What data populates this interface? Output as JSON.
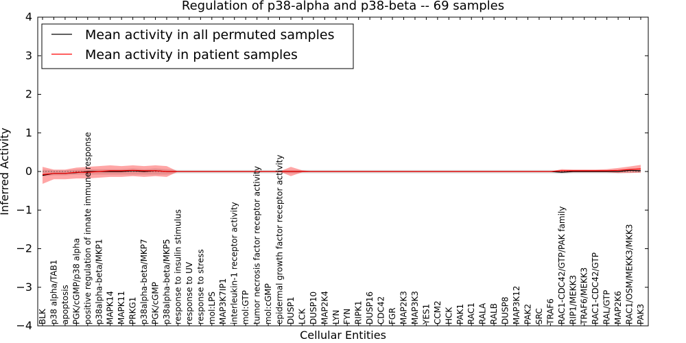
{
  "chart_data": {
    "type": "line",
    "title": "Regulation of p38-alpha and p38-beta -- 69 samples",
    "xlabel": "Cellular Entities",
    "ylabel": "Inferred Activity",
    "ylim": [
      -4,
      4
    ],
    "yticks": [
      -4,
      -3,
      -2,
      -1,
      0,
      1,
      2,
      3,
      4
    ],
    "ytick_labels": [
      "−4",
      "−3",
      "−2",
      "−1",
      "0",
      "1",
      "2",
      "3",
      "4"
    ],
    "legend_position": "top-left",
    "categories": [
      "BLK",
      "p38 alpha/TAB1",
      "apoptosis",
      "PGK/cGMP/p38 alpha",
      "positive regulation of innate immune response",
      "p38alpha-beta/MKP1",
      "MAPK14",
      "MAPK11",
      "PRKG1",
      "p38alpha-beta/MKP7",
      "PGK/cGMP",
      "p38alpha-beta/MKP5",
      "response to insulin stimulus",
      "response to UV",
      "response to stress",
      "mol:LPS",
      "MAP3K7IP1",
      "interleukin-1 receptor activity",
      "mol:GTP",
      "tumor necrosis factor receptor activity",
      "mol:cGMP",
      "epidermal growth factor receptor activity",
      "DUSP1",
      "LCK",
      "DUSP10",
      "MAP2K4",
      "LYN",
      "FYN",
      "RIPK1",
      "DUSP16",
      "CDC42",
      "FGR",
      "MAP2K3",
      "MAP3K3",
      "YES1",
      "CCM2",
      "HCK",
      "PAK1",
      "RAC1",
      "RALA",
      "RALB",
      "DUSP8",
      "MAP3K12",
      "PAK2",
      "SRC",
      "TRAF6",
      "RAC1-CDC42/GTP/PAK family",
      "RIP1/MEKK3",
      "TRAF6/MEKK3",
      "RAC1-CDC42/GTP",
      "RAL/GTP",
      "MAP2K6",
      "RAC1/OSM/MEKK3/MKK3",
      "PAK3"
    ],
    "series": [
      {
        "name": "Mean activity in all permuted samples",
        "color": "#000000",
        "values": [
          -0.1,
          -0.05,
          -0.05,
          -0.03,
          0.0,
          0.0,
          0.0,
          0.0,
          0.02,
          0.0,
          0.02,
          0.0,
          0.0,
          0.0,
          0.0,
          0.0,
          0.0,
          0.0,
          0.0,
          0.0,
          0.0,
          0.0,
          0.0,
          0.0,
          0.0,
          0.0,
          0.0,
          0.0,
          0.0,
          0.0,
          0.0,
          0.0,
          0.0,
          0.0,
          0.0,
          0.0,
          0.0,
          0.0,
          0.0,
          0.0,
          0.0,
          0.0,
          0.0,
          0.0,
          0.0,
          0.0,
          -0.02,
          0.0,
          0.0,
          0.0,
          0.0,
          0.0,
          0.03,
          0.02
        ],
        "band_low": [
          -0.12,
          -0.1,
          -0.1,
          -0.08,
          -0.08,
          -0.08,
          -0.08,
          -0.08,
          -0.08,
          -0.08,
          -0.08,
          -0.08,
          -0.05,
          -0.05,
          -0.05,
          -0.05,
          -0.05,
          -0.05,
          -0.05,
          -0.05,
          -0.05,
          -0.05,
          -0.05,
          -0.05,
          -0.05,
          -0.05,
          -0.05,
          -0.05,
          -0.05,
          -0.05,
          -0.05,
          -0.05,
          -0.05,
          -0.05,
          -0.05,
          -0.05,
          -0.05,
          -0.05,
          -0.05,
          -0.05,
          -0.05,
          -0.05,
          -0.05,
          -0.05,
          -0.05,
          -0.05,
          -0.06,
          -0.05,
          -0.05,
          -0.05,
          -0.05,
          -0.05,
          -0.03,
          -0.03
        ],
        "band_high": [
          0.05,
          0.03,
          0.03,
          0.05,
          0.06,
          0.06,
          0.06,
          0.06,
          0.08,
          0.06,
          0.08,
          0.06,
          0.04,
          0.04,
          0.04,
          0.04,
          0.04,
          0.04,
          0.04,
          0.04,
          0.04,
          0.04,
          0.04,
          0.04,
          0.04,
          0.04,
          0.04,
          0.04,
          0.04,
          0.04,
          0.04,
          0.04,
          0.04,
          0.04,
          0.04,
          0.04,
          0.04,
          0.04,
          0.04,
          0.04,
          0.04,
          0.04,
          0.04,
          0.04,
          0.04,
          0.04,
          0.03,
          0.04,
          0.04,
          0.04,
          0.04,
          0.04,
          0.08,
          0.08
        ]
      },
      {
        "name": "Mean activity in patient samples",
        "color": "#ff0000",
        "values": [
          -0.08,
          -0.05,
          -0.05,
          -0.02,
          -0.02,
          0.0,
          0.02,
          0.02,
          0.03,
          0.02,
          0.02,
          0.0,
          0.0,
          0.0,
          0.0,
          0.0,
          0.0,
          0.0,
          0.0,
          0.0,
          0.0,
          0.0,
          0.0,
          0.0,
          0.0,
          0.0,
          0.0,
          0.0,
          0.0,
          0.0,
          0.0,
          0.0,
          0.0,
          0.0,
          0.0,
          0.0,
          0.0,
          0.0,
          0.0,
          0.0,
          0.0,
          0.0,
          0.0,
          0.0,
          0.0,
          0.0,
          0.02,
          0.02,
          0.02,
          0.02,
          0.02,
          0.03,
          0.05,
          0.07
        ],
        "band_low": [
          -0.32,
          -0.2,
          -0.2,
          -0.18,
          -0.18,
          -0.16,
          -0.14,
          -0.14,
          -0.12,
          -0.14,
          -0.12,
          -0.14,
          0.0,
          0.0,
          0.0,
          0.0,
          0.0,
          0.0,
          0.0,
          0.0,
          0.0,
          0.0,
          -0.12,
          -0.02,
          0.0,
          0.0,
          0.0,
          0.0,
          0.0,
          0.0,
          0.0,
          0.0,
          0.0,
          0.0,
          0.0,
          0.0,
          0.0,
          0.0,
          0.0,
          0.0,
          0.0,
          0.0,
          0.0,
          0.0,
          0.0,
          0.0,
          -0.03,
          -0.02,
          -0.02,
          -0.02,
          -0.02,
          -0.04,
          -0.04,
          -0.03
        ],
        "band_high": [
          0.12,
          0.05,
          0.05,
          0.1,
          0.12,
          0.14,
          0.16,
          0.14,
          0.16,
          0.14,
          0.16,
          0.14,
          0.0,
          0.0,
          0.0,
          0.0,
          0.0,
          0.0,
          0.0,
          0.0,
          0.0,
          0.0,
          0.12,
          0.03,
          0.0,
          0.0,
          0.0,
          0.0,
          0.0,
          0.0,
          0.0,
          0.0,
          0.0,
          0.0,
          0.0,
          0.0,
          0.0,
          0.0,
          0.0,
          0.0,
          0.0,
          0.0,
          0.0,
          0.0,
          0.0,
          0.0,
          0.06,
          0.05,
          0.05,
          0.05,
          0.06,
          0.09,
          0.13,
          0.17
        ]
      }
    ]
  }
}
